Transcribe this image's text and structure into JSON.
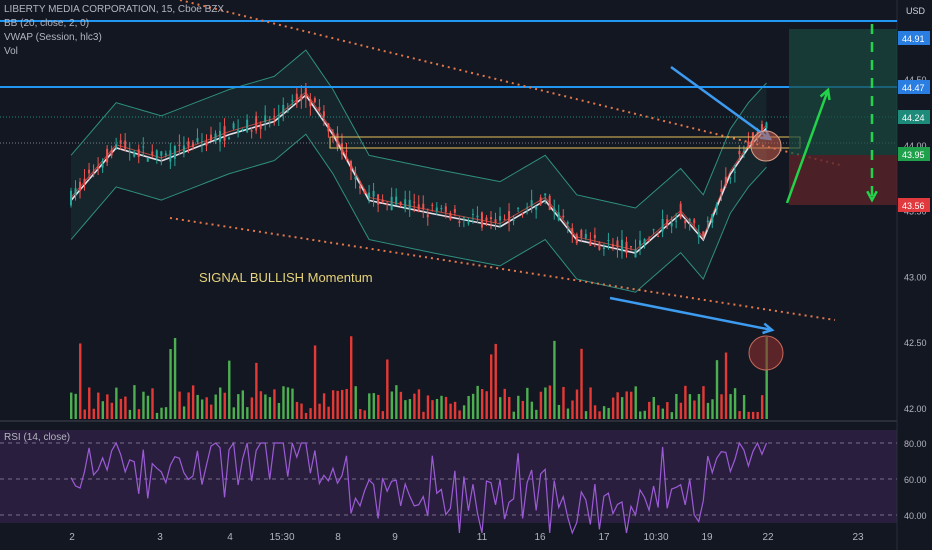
{
  "header": {
    "title": "LIBERTY MEDIA CORPORATION, 15, Cboe BZX",
    "currency": "USD",
    "indicators": [
      "BB (20, close, 2, 0)",
      "VWAP (Session, hlc3)",
      "Vol"
    ]
  },
  "annotation": {
    "signal_text": "SIGNAL BULLISH Momentum"
  },
  "rsi": {
    "label": "RSI (14, close)",
    "levels": [
      80,
      60,
      40
    ]
  },
  "price_labels": [
    {
      "text": "44.91",
      "value": 44.91,
      "color": "#2a7de1"
    },
    {
      "text": "44.47",
      "value": 44.47,
      "color": "#2a7de1"
    },
    {
      "text": "44.24",
      "value": 44.24,
      "color": "#1e8b7a"
    },
    {
      "text": "43.95",
      "value": 43.95,
      "color": "#1fa04a"
    },
    {
      "text": "43.56",
      "value": 43.56,
      "color": "#e0393e"
    }
  ],
  "colors": {
    "up": "#26a69a",
    "down": "#ef5350",
    "vol_up": "#4caf50",
    "vol_down": "#e53935",
    "blue_line": "#2196f3",
    "trend": "#e4774a",
    "rsi": "#9c5bd6"
  },
  "chart_data": {
    "type": "candlestick",
    "title": "LIBERTY MEDIA CORPORATION, 15, Cboe BZX",
    "yaxis": {
      "ticks": [
        42.0,
        42.5,
        43.0,
        43.5,
        44.0,
        44.5
      ],
      "range": [
        41.9,
        45.05
      ]
    },
    "xaxis": {
      "ticks": [
        "2",
        "3",
        "4",
        "15:30",
        "8",
        "9",
        "11",
        "16",
        "17",
        "10:30",
        "19",
        "22",
        "23"
      ]
    },
    "horizontal_levels": [
      44.95,
      44.47
    ],
    "position": {
      "entry": 43.95,
      "target": 44.91,
      "stop": 43.56
    },
    "rsi_axis": [
      80.0,
      60.0,
      40.0
    ]
  }
}
